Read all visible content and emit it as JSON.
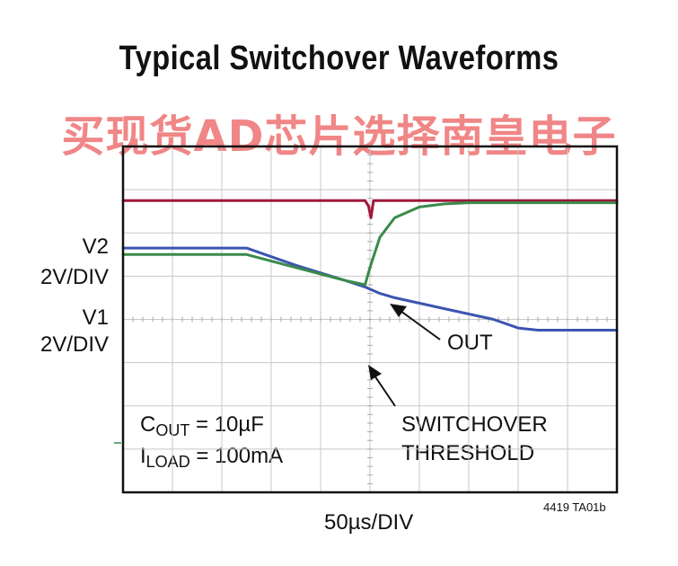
{
  "chart_data": {
    "type": "line",
    "title": "Typical Switchover Waveforms",
    "watermark": "买现货AD芯片选择南皇电子",
    "channel_labels": [
      {
        "name": "V2",
        "scale": "2V/DIV"
      },
      {
        "name": "V1",
        "scale": "2V/DIV"
      }
    ],
    "xlabel": "50µs/DIV",
    "figure_id": "4419 TA01b",
    "conditions": {
      "cout_prefix": "C",
      "cout_sub": "OUT",
      "cout_value": "= 10µF",
      "iload_prefix": "I",
      "iload_sub": "LOAD",
      "iload_value": "= 100mA"
    },
    "annotations": {
      "out": "OUT",
      "switchover_line1": "SWITCHOVER",
      "switchover_line2": "THRESHOLD"
    },
    "grid": {
      "x_divisions": 10,
      "y_divisions": 8,
      "shown": true
    },
    "x_range": [
      0,
      10
    ],
    "y_range": [
      0,
      8
    ],
    "series": [
      {
        "key": "v2",
        "color": "#a0173a",
        "x": [
          0,
          4.9,
          4.97,
          5.02,
          5.07,
          10
        ],
        "y": [
          6.75,
          6.75,
          6.62,
          6.35,
          6.75,
          6.75
        ]
      },
      {
        "key": "v1",
        "color": "#3b55b0",
        "x": [
          0,
          2.5,
          3.5,
          4.5,
          4.9,
          5.2,
          5.5,
          6.5,
          7.5,
          8.0,
          8.4,
          10
        ],
        "y": [
          5.65,
          5.65,
          5.25,
          4.9,
          4.75,
          4.6,
          4.5,
          4.25,
          4.0,
          3.8,
          3.75,
          3.75
        ]
      },
      {
        "key": "out",
        "color": "#3a8a4a",
        "x": [
          0,
          2.5,
          3.5,
          4.5,
          4.9,
          5.0,
          5.2,
          5.5,
          6.0,
          6.5,
          7.0,
          8.0,
          10
        ],
        "y": [
          5.5,
          5.5,
          5.2,
          4.9,
          4.8,
          5.2,
          5.9,
          6.35,
          6.6,
          6.67,
          6.7,
          6.7,
          6.7
        ]
      }
    ]
  }
}
